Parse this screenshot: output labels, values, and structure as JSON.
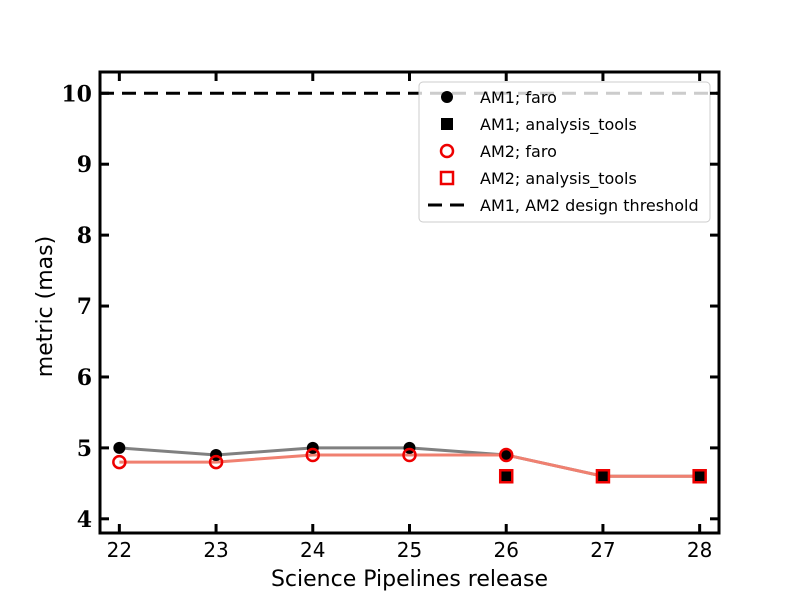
{
  "chart_data": {
    "type": "line",
    "xlabel": "Science Pipelines release",
    "ylabel": "metric (mas)",
    "xlim": [
      21.8,
      28.2
    ],
    "ylim": [
      3.8,
      10.3
    ],
    "xticks": [
      22,
      23,
      24,
      25,
      26,
      27,
      28
    ],
    "yticks": [
      4,
      5,
      6,
      7,
      8,
      9,
      10
    ],
    "grid": false,
    "legend_position": "top-right",
    "threshold": {
      "value": 10,
      "label": "AM1, AM2 design threshold",
      "color": "#000000",
      "style": "dashed"
    },
    "lines": [
      {
        "color": "#808080",
        "x": [
          22,
          23,
          24,
          25,
          26,
          27,
          28
        ],
        "y": [
          5.0,
          4.9,
          5.0,
          5.0,
          4.9,
          4.6,
          4.6
        ]
      },
      {
        "color": "#f08070",
        "x": [
          22,
          23,
          24,
          25,
          26,
          27,
          28
        ],
        "y": [
          4.8,
          4.8,
          4.9,
          4.9,
          4.9,
          4.6,
          4.6
        ]
      }
    ],
    "series": [
      {
        "name": "AM1; faro",
        "marker": "filled-circle",
        "color": "#000000",
        "x": [
          22,
          23,
          24,
          25,
          26
        ],
        "y": [
          5.0,
          4.9,
          5.0,
          5.0,
          4.9
        ]
      },
      {
        "name": "AM1; analysis_tools",
        "marker": "filled-square",
        "color": "#000000",
        "x": [
          26,
          27,
          28
        ],
        "y": [
          4.6,
          4.6,
          4.6
        ]
      },
      {
        "name": "AM2; faro",
        "marker": "open-circle",
        "color": "#ee0000",
        "x": [
          22,
          23,
          24,
          25,
          26
        ],
        "y": [
          4.8,
          4.8,
          4.9,
          4.9,
          4.9
        ]
      },
      {
        "name": "AM2; analysis_tools",
        "marker": "open-square",
        "color": "#ee0000",
        "x": [
          26,
          27,
          28
        ],
        "y": [
          4.6,
          4.6,
          4.6
        ]
      }
    ]
  }
}
